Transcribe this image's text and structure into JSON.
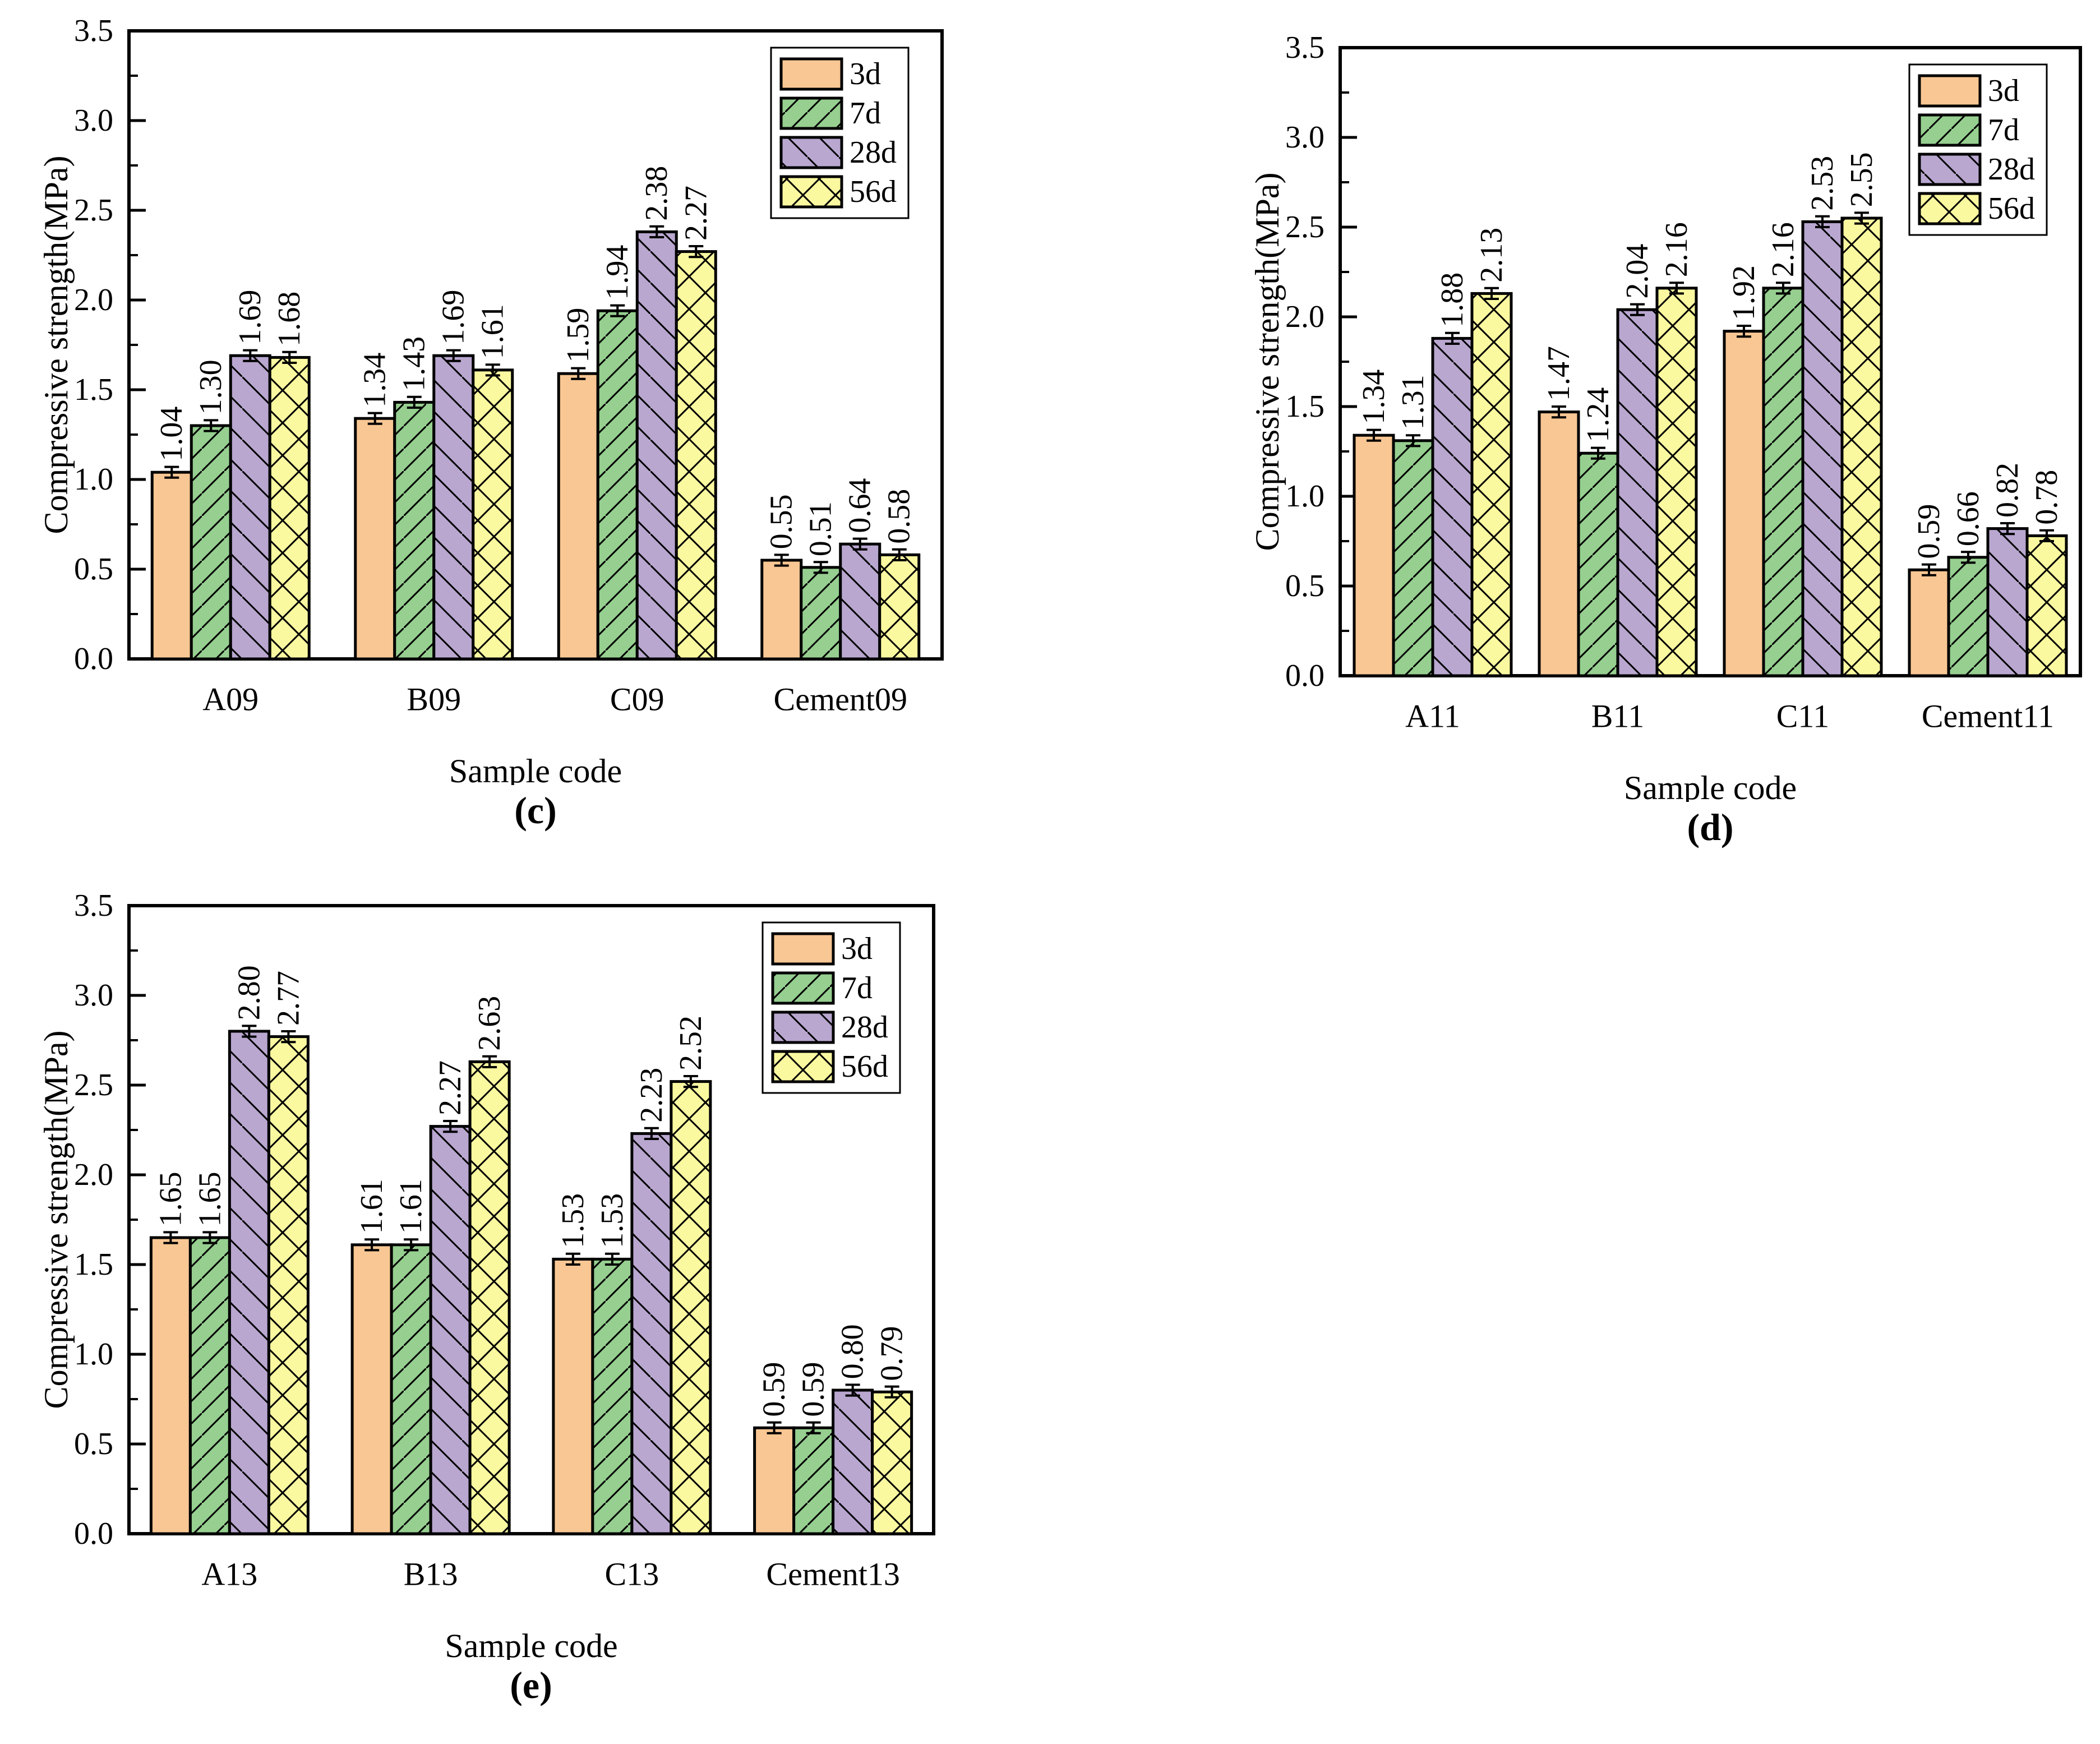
{
  "page": {
    "background": "#ffffff"
  },
  "series_styles": [
    {
      "name": "3d",
      "fill": "#F9C794",
      "hatch": "none"
    },
    {
      "name": "7d",
      "fill": "#96CF90",
      "hatch": "forward-diagonal"
    },
    {
      "name": "28d",
      "fill": "#B9A7D0",
      "hatch": "backward-diagonal"
    },
    {
      "name": "56d",
      "fill": "#FBF9A0",
      "hatch": "crosshatch"
    }
  ],
  "chart_data": [
    {
      "type": "bar",
      "caption": "(c)",
      "xlabel": "Sample code",
      "ylabel": "Compressive strength(MPa)",
      "ylim": [
        0,
        3.5
      ],
      "ytick_step": 0.5,
      "ytick_minor_step": 0.25,
      "grid": false,
      "legend_position": "top-right",
      "legend_entries": [
        "3d",
        "7d",
        "28d",
        "56d"
      ],
      "error_approx": 0.03,
      "categories": [
        "A09",
        "B09",
        "C09",
        "Cement09"
      ],
      "series": [
        {
          "name": "3d",
          "values": [
            1.04,
            1.34,
            1.59,
            0.55
          ]
        },
        {
          "name": "7d",
          "values": [
            1.3,
            1.43,
            1.94,
            0.51
          ]
        },
        {
          "name": "28d",
          "values": [
            1.69,
            1.69,
            2.38,
            0.64
          ]
        },
        {
          "name": "56d",
          "values": [
            1.68,
            1.61,
            2.27,
            0.58
          ]
        }
      ]
    },
    {
      "type": "bar",
      "caption": "(d)",
      "xlabel": "Sample code",
      "ylabel": "Compressive strength(MPa)",
      "ylim": [
        0,
        3.5
      ],
      "ytick_step": 0.5,
      "ytick_minor_step": 0.25,
      "grid": false,
      "legend_position": "top-right",
      "legend_entries": [
        "3d",
        "7d",
        "28d",
        "56d"
      ],
      "error_approx": 0.03,
      "categories": [
        "A11",
        "B11",
        "C11",
        "Cement11"
      ],
      "series": [
        {
          "name": "3d",
          "values": [
            1.34,
            1.47,
            1.92,
            0.59
          ]
        },
        {
          "name": "7d",
          "values": [
            1.31,
            1.24,
            2.16,
            0.66
          ]
        },
        {
          "name": "28d",
          "values": [
            1.88,
            2.04,
            2.53,
            0.82
          ]
        },
        {
          "name": "56d",
          "values": [
            2.13,
            2.16,
            2.55,
            0.78
          ]
        }
      ]
    },
    {
      "type": "bar",
      "caption": "(e)",
      "xlabel": "Sample code",
      "ylabel": "Compressive strength(MPa)",
      "ylim": [
        0,
        3.5
      ],
      "ytick_step": 0.5,
      "ytick_minor_step": 0.25,
      "grid": false,
      "legend_position": "top-right",
      "legend_entries": [
        "3d",
        "7d",
        "28d",
        "56d"
      ],
      "error_approx": 0.03,
      "categories": [
        "A13",
        "B13",
        "C13",
        "Cement13"
      ],
      "series": [
        {
          "name": "3d",
          "values": [
            1.65,
            1.61,
            1.53,
            0.59
          ]
        },
        {
          "name": "7d",
          "values": [
            1.65,
            1.61,
            1.53,
            0.59
          ]
        },
        {
          "name": "28d",
          "values": [
            2.8,
            2.27,
            2.23,
            0.8
          ]
        },
        {
          "name": "56d",
          "values": [
            2.77,
            2.63,
            2.52,
            0.79
          ]
        }
      ]
    }
  ]
}
